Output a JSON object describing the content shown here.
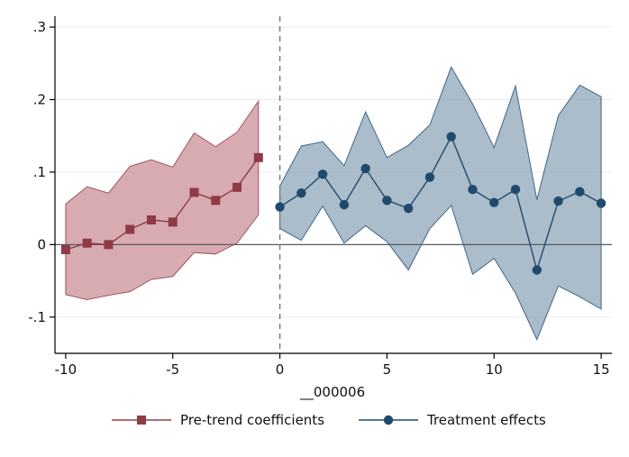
{
  "chart_data": {
    "type": "line",
    "xlabel": "__000006",
    "ylabel": "",
    "xlim": [
      -10.5,
      15.5
    ],
    "ylim": [
      -0.15,
      0.315
    ],
    "x_ticks": [
      -10,
      -5,
      0,
      5,
      10,
      15
    ],
    "x_tick_labels": [
      "-10",
      "-5",
      "0",
      "5",
      "10",
      "15"
    ],
    "y_ticks": [
      -0.1,
      0,
      0.1,
      0.2,
      0.3
    ],
    "y_tick_labels": [
      "-.1",
      "0",
      ".1",
      ".2",
      ".3"
    ],
    "grid": true,
    "reference_lines": {
      "horizontal_y": 0,
      "vertical_dashed_x": 0
    },
    "legend_position": "bottom",
    "series": [
      {
        "name": "Pre-trend coefficients",
        "color": "#8f3a45",
        "band_color": "#c98b93",
        "marker": "square",
        "x": [
          -10,
          -9,
          -8,
          -7,
          -6,
          -5,
          -4,
          -3,
          -2,
          -1
        ],
        "y": [
          -0.007,
          0.002,
          0.0,
          0.021,
          0.034,
          0.031,
          0.072,
          0.061,
          0.079,
          0.12
        ],
        "ci_low": [
          -0.069,
          -0.076,
          -0.07,
          -0.065,
          -0.048,
          -0.044,
          -0.011,
          -0.013,
          0.002,
          0.041
        ],
        "ci_high": [
          0.056,
          0.08,
          0.071,
          0.108,
          0.117,
          0.107,
          0.154,
          0.135,
          0.155,
          0.198
        ]
      },
      {
        "name": "Treatment effects",
        "color": "#1f4a6e",
        "band_color": "#8aa2b6",
        "marker": "circle",
        "x": [
          0,
          1,
          2,
          3,
          4,
          5,
          6,
          7,
          8,
          9,
          10,
          11,
          12,
          13,
          14,
          15
        ],
        "y": [
          0.052,
          0.071,
          0.097,
          0.055,
          0.105,
          0.061,
          0.05,
          0.093,
          0.149,
          0.076,
          0.058,
          0.076,
          -0.035,
          0.06,
          0.073,
          0.057
        ],
        "ci_low": [
          0.022,
          0.006,
          0.053,
          0.002,
          0.026,
          0.004,
          -0.035,
          0.022,
          0.054,
          -0.041,
          -0.019,
          -0.067,
          -0.131,
          -0.057,
          -0.072,
          -0.089
        ],
        "ci_high": [
          0.081,
          0.136,
          0.142,
          0.109,
          0.183,
          0.12,
          0.137,
          0.165,
          0.245,
          0.194,
          0.134,
          0.219,
          0.062,
          0.178,
          0.22,
          0.204
        ]
      }
    ]
  }
}
